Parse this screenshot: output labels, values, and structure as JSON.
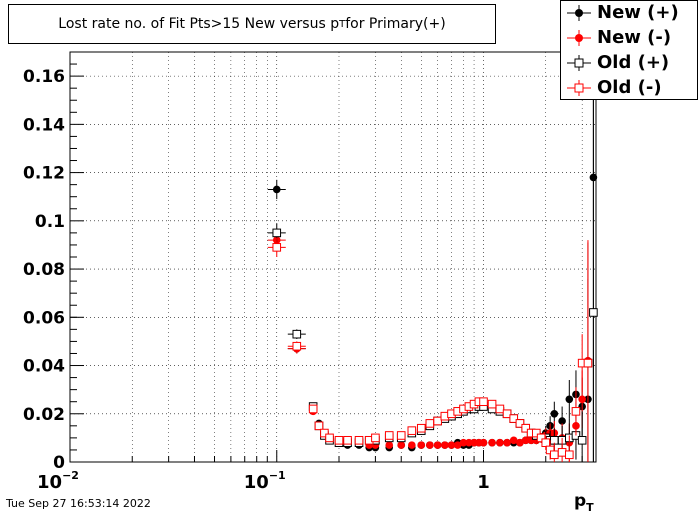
{
  "title": {
    "main": "Lost rate no. of Fit Pts>15 New versus p",
    "sub": "T",
    "suffix": " for Primary(+)"
  },
  "timestamp": "Tue Sep 27 16:53:14 2022",
  "legend": [
    {
      "label": "New (+)",
      "color": "#000000",
      "marker": "filled-circle"
    },
    {
      "label": "New (-)",
      "color": "#ff0000",
      "marker": "filled-circle"
    },
    {
      "label": "Old (+)",
      "color": "#000000",
      "marker": "open-square"
    },
    {
      "label": "Old (-)",
      "color": "#ff0000",
      "marker": "open-square"
    }
  ],
  "chart_data": {
    "type": "scatter",
    "xlabel": "p",
    "xlabel_sub": "T",
    "xscale": "log",
    "xlim": [
      0.01,
      3.5
    ],
    "ylim": [
      0,
      0.17
    ],
    "grid": true,
    "legend_position": "top-right",
    "x_ticks": [
      {
        "value": 0.01,
        "label": "10",
        "exp": "−2"
      },
      {
        "value": 0.1,
        "label": "10",
        "exp": "−1"
      },
      {
        "value": 1,
        "label": "1",
        "exp": ""
      }
    ],
    "y_ticks": [
      "0",
      "0.02",
      "0.04",
      "0.06",
      "0.08",
      "0.1",
      "0.12",
      "0.14",
      "0.16"
    ],
    "series": [
      {
        "name": "New (+)",
        "color": "#000000",
        "marker": "filled-circle",
        "x": [
          0.1,
          0.125,
          0.15,
          0.16,
          0.17,
          0.18,
          0.2,
          0.22,
          0.25,
          0.28,
          0.3,
          0.35,
          0.4,
          0.45,
          0.5,
          0.55,
          0.6,
          0.65,
          0.7,
          0.75,
          0.8,
          0.85,
          0.9,
          0.95,
          1.0,
          1.1,
          1.2,
          1.3,
          1.4,
          1.5,
          1.6,
          1.7,
          1.8,
          1.9,
          2.0,
          2.1,
          2.2,
          2.4,
          2.6,
          2.8,
          3.0,
          3.2,
          3.4
        ],
        "y": [
          0.113,
          0.047,
          0.023,
          0.016,
          0.012,
          0.009,
          0.008,
          0.007,
          0.007,
          0.006,
          0.006,
          0.006,
          0.007,
          0.006,
          0.007,
          0.007,
          0.007,
          0.007,
          0.007,
          0.008,
          0.007,
          0.007,
          0.008,
          0.008,
          0.008,
          0.008,
          0.008,
          0.008,
          0.008,
          0.008,
          0.009,
          0.009,
          0.009,
          0.01,
          0.012,
          0.015,
          0.02,
          0.017,
          0.026,
          0.028,
          0.023,
          0.026,
          0.118
        ],
        "yerr": [
          0.004,
          0.002,
          0.0015,
          0.001,
          0.001,
          0.001,
          0.0008,
          0.0006,
          0.0005,
          0.0005,
          0.0005,
          0.0005,
          0.0005,
          0.0005,
          0.0005,
          0.0005,
          0.0005,
          0.0005,
          0.0005,
          0.0005,
          0.0005,
          0.0005,
          0.0005,
          0.0005,
          0.0005,
          0.0006,
          0.0007,
          0.0008,
          0.0009,
          0.001,
          0.0012,
          0.0014,
          0.0016,
          0.002,
          0.003,
          0.004,
          0.005,
          0.006,
          0.008,
          0.01,
          0.012,
          0.05,
          0.16
        ]
      },
      {
        "name": "New (-)",
        "color": "#ff0000",
        "marker": "filled-circle",
        "x": [
          0.1,
          0.125,
          0.15,
          0.16,
          0.17,
          0.18,
          0.2,
          0.22,
          0.25,
          0.28,
          0.3,
          0.35,
          0.4,
          0.45,
          0.5,
          0.55,
          0.6,
          0.65,
          0.7,
          0.75,
          0.8,
          0.85,
          0.9,
          0.95,
          1.0,
          1.1,
          1.2,
          1.3,
          1.4,
          1.5,
          1.6,
          1.7,
          1.8,
          1.9,
          2.0,
          2.1,
          2.2,
          2.4,
          2.6,
          2.8,
          3.0,
          3.2
        ],
        "y": [
          0.092,
          0.047,
          0.021,
          0.015,
          0.011,
          0.01,
          0.009,
          0.008,
          0.008,
          0.007,
          0.007,
          0.007,
          0.007,
          0.007,
          0.007,
          0.007,
          0.007,
          0.007,
          0.007,
          0.007,
          0.008,
          0.008,
          0.008,
          0.008,
          0.008,
          0.008,
          0.008,
          0.008,
          0.009,
          0.008,
          0.009,
          0.009,
          0.009,
          0.01,
          0.011,
          0.012,
          0.012,
          0.01,
          0.008,
          0.015,
          0.026,
          0.042
        ],
        "yerr": [
          0.004,
          0.002,
          0.0015,
          0.001,
          0.001,
          0.001,
          0.0008,
          0.0006,
          0.0005,
          0.0005,
          0.0005,
          0.0005,
          0.0005,
          0.0005,
          0.0005,
          0.0005,
          0.0005,
          0.0005,
          0.0005,
          0.0005,
          0.0005,
          0.0005,
          0.0005,
          0.0005,
          0.0005,
          0.0006,
          0.0007,
          0.0008,
          0.0009,
          0.001,
          0.0012,
          0.0014,
          0.0016,
          0.002,
          0.003,
          0.004,
          0.005,
          0.006,
          0.008,
          0.01,
          0.012,
          0.05
        ]
      },
      {
        "name": "Old (+)",
        "color": "#000000",
        "marker": "open-square",
        "x": [
          0.1,
          0.125,
          0.15,
          0.16,
          0.17,
          0.18,
          0.2,
          0.22,
          0.25,
          0.28,
          0.3,
          0.35,
          0.4,
          0.45,
          0.5,
          0.55,
          0.6,
          0.65,
          0.7,
          0.75,
          0.8,
          0.85,
          0.9,
          0.95,
          1.0,
          1.1,
          1.2,
          1.3,
          1.4,
          1.5,
          1.6,
          1.7,
          1.8,
          1.9,
          2.0,
          2.1,
          2.2,
          2.4,
          2.6,
          2.8,
          3.0,
          3.2,
          3.4
        ],
        "y": [
          0.095,
          0.053,
          0.023,
          0.015,
          0.011,
          0.009,
          0.008,
          0.008,
          0.008,
          0.009,
          0.009,
          0.01,
          0.01,
          0.012,
          0.013,
          0.015,
          0.017,
          0.018,
          0.019,
          0.02,
          0.021,
          0.022,
          0.022,
          0.023,
          0.023,
          0.022,
          0.021,
          0.02,
          0.018,
          0.016,
          0.014,
          0.012,
          0.011,
          0.01,
          0.01,
          0.009,
          0.009,
          0.009,
          0.01,
          0.011,
          0.009,
          0.041,
          0.062
        ],
        "yerr": [
          0.004,
          0.002,
          0.0015,
          0.001,
          0.001,
          0.001,
          0.0008,
          0.0006,
          0.0005,
          0.0005,
          0.0005,
          0.0005,
          0.0005,
          0.0005,
          0.0005,
          0.0005,
          0.0005,
          0.0005,
          0.0005,
          0.0005,
          0.0005,
          0.0005,
          0.0005,
          0.0005,
          0.0005,
          0.0006,
          0.0007,
          0.0008,
          0.0009,
          0.001,
          0.0012,
          0.0014,
          0.0016,
          0.002,
          0.003,
          0.004,
          0.005,
          0.006,
          0.008,
          0.01,
          0.012,
          0.05,
          0.16
        ]
      },
      {
        "name": "Old (-)",
        "color": "#ff0000",
        "marker": "open-square",
        "x": [
          0.1,
          0.125,
          0.15,
          0.16,
          0.17,
          0.18,
          0.2,
          0.22,
          0.25,
          0.28,
          0.3,
          0.35,
          0.4,
          0.45,
          0.5,
          0.55,
          0.6,
          0.65,
          0.7,
          0.75,
          0.8,
          0.85,
          0.9,
          0.95,
          1.0,
          1.1,
          1.2,
          1.3,
          1.4,
          1.5,
          1.6,
          1.7,
          1.8,
          1.9,
          2.0,
          2.1,
          2.2,
          2.4,
          2.6,
          2.8,
          3.0,
          3.2
        ],
        "y": [
          0.089,
          0.048,
          0.022,
          0.015,
          0.012,
          0.01,
          0.009,
          0.009,
          0.009,
          0.009,
          0.01,
          0.011,
          0.011,
          0.013,
          0.014,
          0.016,
          0.017,
          0.019,
          0.02,
          0.021,
          0.022,
          0.023,
          0.024,
          0.025,
          0.025,
          0.024,
          0.022,
          0.02,
          0.018,
          0.016,
          0.014,
          0.012,
          0.012,
          0.01,
          0.008,
          0.005,
          0.003,
          0.004,
          0.003,
          0.021,
          0.041,
          0.041
        ],
        "yerr": [
          0.004,
          0.002,
          0.0015,
          0.001,
          0.001,
          0.001,
          0.0008,
          0.0006,
          0.0005,
          0.0005,
          0.0005,
          0.0005,
          0.0005,
          0.0005,
          0.0005,
          0.0005,
          0.0005,
          0.0005,
          0.0005,
          0.0005,
          0.0005,
          0.0005,
          0.0005,
          0.0005,
          0.0005,
          0.0006,
          0.0007,
          0.0008,
          0.0009,
          0.001,
          0.0012,
          0.0014,
          0.0016,
          0.002,
          0.003,
          0.004,
          0.005,
          0.006,
          0.008,
          0.01,
          0.012,
          0.05
        ]
      }
    ]
  }
}
